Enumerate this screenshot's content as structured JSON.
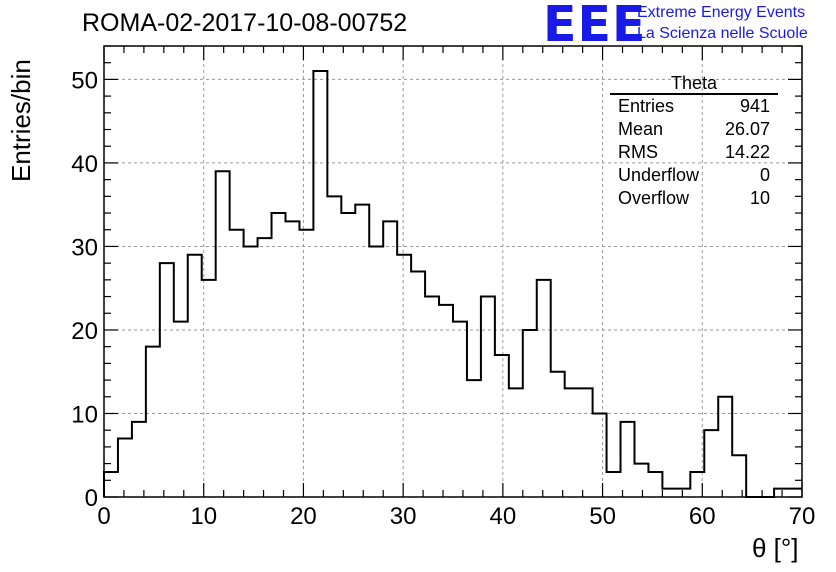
{
  "header": {
    "run_title": "ROMA-02-2017-10-08-00752",
    "logo": "EEE",
    "logo_line1": "Extreme Energy Events",
    "logo_line2": "La Scienza nelle Scuole"
  },
  "stats": {
    "title": "Theta",
    "rows": [
      {
        "label": "Entries",
        "value": "941"
      },
      {
        "label": "Mean",
        "value": "26.07"
      },
      {
        "label": "RMS",
        "value": "14.22"
      },
      {
        "label": "Underflow",
        "value": "0"
      },
      {
        "label": "Overflow",
        "value": "10"
      }
    ]
  },
  "chart_data": {
    "type": "bar",
    "histogram": true,
    "xlabel": "θ [°]",
    "ylabel": "Entries/bin",
    "xlim": [
      0,
      70
    ],
    "ylim": [
      0,
      54
    ],
    "bin_width": 1.4,
    "x_ticks": [
      0,
      10,
      20,
      30,
      40,
      50,
      60,
      70
    ],
    "y_ticks": [
      0,
      10,
      20,
      30,
      40,
      50
    ],
    "grid": true,
    "line_color": "#000000",
    "values": [
      3,
      7,
      9,
      18,
      28,
      21,
      29,
      26,
      39,
      32,
      30,
      31,
      34,
      33,
      32,
      51,
      36,
      34,
      35,
      30,
      33,
      29,
      27,
      24,
      23,
      21,
      14,
      24,
      17,
      13,
      20,
      26,
      15,
      13,
      13,
      10,
      3,
      9,
      4,
      3,
      1,
      1,
      3,
      8,
      12,
      5,
      0,
      0,
      1,
      1
    ]
  }
}
